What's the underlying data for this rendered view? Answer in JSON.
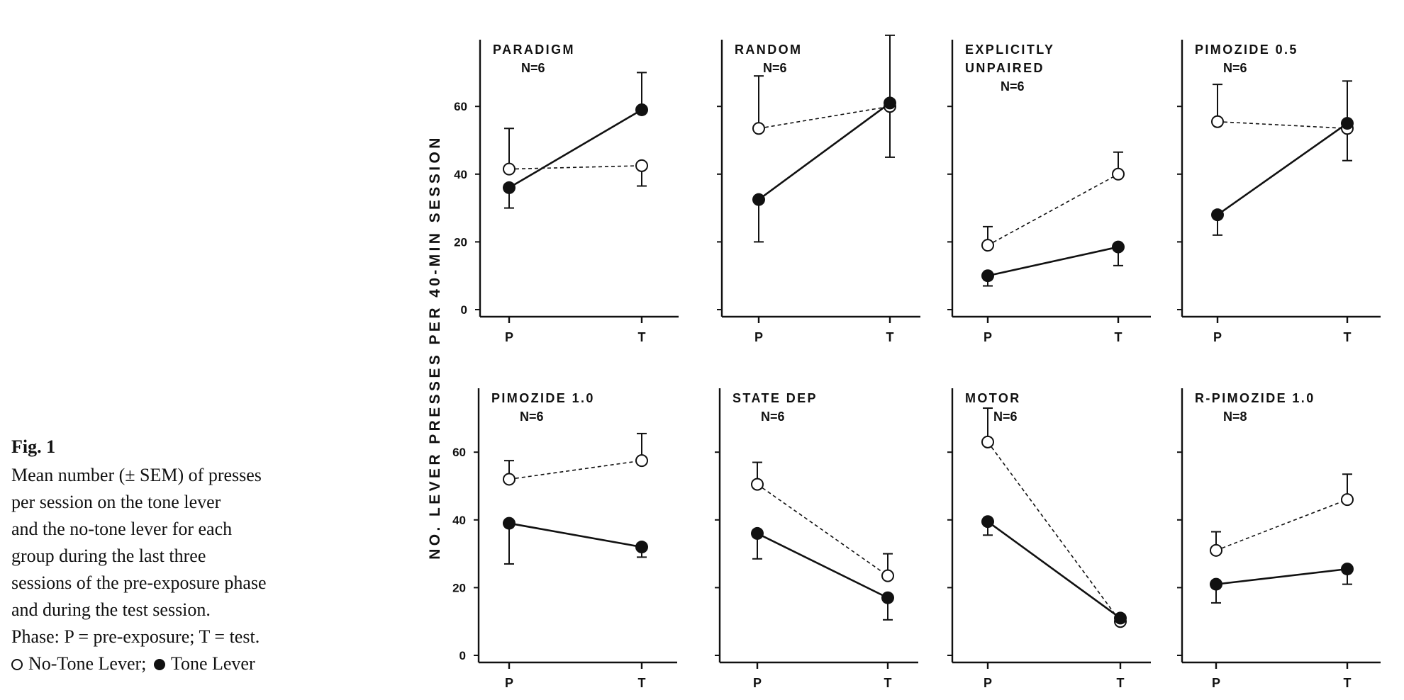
{
  "figure": {
    "caption_title": "Fig. 1",
    "caption_lines": [
      "Mean number (± SEM) of presses",
      "per session on the tone lever",
      "and the no-tone lever for each",
      "group during the last three",
      "sessions of the pre-exposure phase",
      "and during the test session.",
      "Phase: P = pre-exposure; T = test."
    ],
    "legend_open": "No-Tone Lever;",
    "legend_filled": "Tone Lever",
    "ylabel": "NO. LEVER PRESSES PER 40-MIN SESSION"
  },
  "chart_data": [
    {
      "type": "line",
      "title": [
        "PARADIGM",
        "N=6"
      ],
      "categories": [
        "P",
        "T"
      ],
      "ylim": [
        0,
        60
      ],
      "yticks": [
        "0",
        "20",
        "40",
        "60"
      ],
      "series": [
        {
          "name": "No-Tone Lever",
          "marker": "open",
          "style": "dashed",
          "values": [
            41.5,
            42.5
          ],
          "sem_up": [
            12,
            0
          ],
          "sem_down": [
            0,
            6
          ]
        },
        {
          "name": "Tone Lever",
          "marker": "filled",
          "style": "solid",
          "values": [
            36,
            59
          ],
          "sem_up": [
            0,
            11
          ],
          "sem_down": [
            6,
            0
          ]
        }
      ]
    },
    {
      "type": "line",
      "title": [
        "RANDOM",
        "N=6"
      ],
      "categories": [
        "P",
        "T"
      ],
      "ylim": [
        0,
        60
      ],
      "yticks": [],
      "series": [
        {
          "name": "No-Tone Lever",
          "marker": "open",
          "style": "dashed",
          "values": [
            53.5,
            60
          ],
          "sem_up": [
            15.5,
            0
          ],
          "sem_down": [
            0,
            0
          ]
        },
        {
          "name": "Tone Lever",
          "marker": "filled",
          "style": "solid",
          "values": [
            32.5,
            61
          ],
          "sem_up": [
            0,
            20
          ],
          "sem_down": [
            12.5,
            16
          ]
        }
      ]
    },
    {
      "type": "line",
      "title": [
        "EXPLICITLY",
        "UNPAIRED",
        "N=6"
      ],
      "categories": [
        "P",
        "T"
      ],
      "ylim": [
        0,
        60
      ],
      "yticks": [],
      "series": [
        {
          "name": "No-Tone Lever",
          "marker": "open",
          "style": "dashed",
          "values": [
            19,
            40
          ],
          "sem_up": [
            5.5,
            6.5
          ],
          "sem_down": [
            0,
            0
          ]
        },
        {
          "name": "Tone Lever",
          "marker": "filled",
          "style": "solid",
          "values": [
            10,
            18.5
          ],
          "sem_up": [
            0,
            0
          ],
          "sem_down": [
            3,
            5.5
          ]
        }
      ]
    },
    {
      "type": "line",
      "title": [
        "PIMOZIDE 0.5",
        "N=6"
      ],
      "categories": [
        "P",
        "T"
      ],
      "ylim": [
        0,
        60
      ],
      "yticks": [],
      "series": [
        {
          "name": "No-Tone Lever",
          "marker": "open",
          "style": "dashed",
          "values": [
            55.5,
            53.5
          ],
          "sem_up": [
            11,
            0
          ],
          "sem_down": [
            0,
            0
          ]
        },
        {
          "name": "Tone Lever",
          "marker": "filled",
          "style": "solid",
          "values": [
            28,
            55
          ],
          "sem_up": [
            0,
            12.5
          ],
          "sem_down": [
            6,
            11
          ]
        }
      ]
    },
    {
      "type": "line",
      "title": [
        "PIMOZIDE 1.0",
        "N=6"
      ],
      "categories": [
        "P",
        "T"
      ],
      "ylim": [
        0,
        60
      ],
      "yticks": [
        "0",
        "20",
        "40",
        "60"
      ],
      "series": [
        {
          "name": "No-Tone Lever",
          "marker": "open",
          "style": "dashed",
          "values": [
            52,
            57.5
          ],
          "sem_up": [
            5.5,
            8
          ],
          "sem_down": [
            0,
            0
          ]
        },
        {
          "name": "Tone Lever",
          "marker": "filled",
          "style": "solid",
          "values": [
            39,
            32
          ],
          "sem_up": [
            0,
            0
          ],
          "sem_down": [
            12,
            3
          ]
        }
      ]
    },
    {
      "type": "line",
      "title": [
        "STATE DEP",
        "N=6"
      ],
      "categories": [
        "P",
        "T"
      ],
      "ylim": [
        0,
        60
      ],
      "yticks": [],
      "series": [
        {
          "name": "No-Tone Lever",
          "marker": "open",
          "style": "dashed",
          "values": [
            50.5,
            23.5
          ],
          "sem_up": [
            6.5,
            6.5
          ],
          "sem_down": [
            0,
            0
          ]
        },
        {
          "name": "Tone Lever",
          "marker": "filled",
          "style": "solid",
          "values": [
            36,
            17
          ],
          "sem_up": [
            0,
            0
          ],
          "sem_down": [
            7.5,
            6.5
          ]
        }
      ]
    },
    {
      "type": "line",
      "title": [
        "MOTOR",
        "N=6"
      ],
      "categories": [
        "P",
        "T"
      ],
      "ylim": [
        0,
        60
      ],
      "yticks": [],
      "series": [
        {
          "name": "No-Tone Lever",
          "marker": "open",
          "style": "dashed",
          "values": [
            63,
            10
          ],
          "sem_up": [
            10,
            0
          ],
          "sem_down": [
            0,
            0
          ]
        },
        {
          "name": "Tone Lever",
          "marker": "filled",
          "style": "solid",
          "values": [
            39.5,
            11
          ],
          "sem_up": [
            0,
            0
          ],
          "sem_down": [
            4,
            0
          ]
        }
      ]
    },
    {
      "type": "line",
      "title": [
        "R-PIMOZIDE 1.0",
        "N=8"
      ],
      "categories": [
        "P",
        "T"
      ],
      "ylim": [
        0,
        60
      ],
      "yticks": [],
      "series": [
        {
          "name": "No-Tone Lever",
          "marker": "open",
          "style": "dashed",
          "values": [
            31,
            46
          ],
          "sem_up": [
            5.5,
            7.5
          ],
          "sem_down": [
            0,
            0
          ]
        },
        {
          "name": "Tone Lever",
          "marker": "filled",
          "style": "solid",
          "values": [
            21,
            25.5
          ],
          "sem_up": [
            0,
            0
          ],
          "sem_down": [
            5.5,
            4.5
          ]
        }
      ]
    }
  ]
}
